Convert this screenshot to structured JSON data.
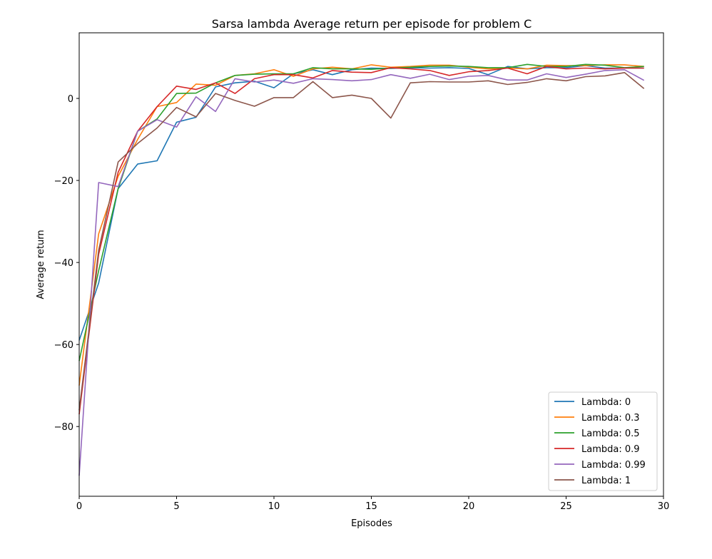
{
  "chart_data": {
    "type": "line",
    "title": "Sarsa lambda Average return per episode for problem C",
    "xlabel": "Episodes",
    "ylabel": "Average return",
    "xlim": [
      0,
      30
    ],
    "ylim": [
      -97,
      16
    ],
    "xticks": [
      0,
      5,
      10,
      15,
      20,
      25,
      30
    ],
    "yticks": [
      -80,
      -60,
      -40,
      -20,
      0
    ],
    "grid": false,
    "legend_position": "lower right",
    "x": [
      0,
      1,
      2,
      3,
      4,
      5,
      6,
      7,
      8,
      9,
      10,
      11,
      12,
      13,
      14,
      15,
      16,
      17,
      18,
      19,
      20,
      21,
      22,
      23,
      24,
      25,
      26,
      27,
      28,
      29
    ],
    "series": [
      {
        "name": "Lambda: 0",
        "color": "#1f77b4",
        "values": [
          -59,
          -45,
          -22,
          -16,
          -15.2,
          -5.8,
          -4.6,
          2.8,
          3.8,
          4.2,
          2.6,
          6,
          7,
          5.8,
          7,
          7.4,
          7.3,
          7.5,
          7.4,
          7.5,
          7.3,
          5.8,
          7.8,
          7.2,
          7.5,
          7.5,
          8,
          7.4,
          7.4,
          7.4
        ]
      },
      {
        "name": "Lambda: 0.3",
        "color": "#ff7f0e",
        "values": [
          -70,
          -33,
          -19,
          -10,
          -2,
          -1,
          3.5,
          3.2,
          5.6,
          6,
          7,
          5.4,
          7.2,
          7.6,
          7.2,
          8.2,
          7.6,
          7.8,
          8.1,
          8.1,
          7.6,
          7.2,
          7.4,
          7.2,
          8.1,
          8,
          8,
          8.2,
          8.2,
          7.8
        ]
      },
      {
        "name": "Lambda: 0.5",
        "color": "#2ca02c",
        "values": [
          -64,
          -42,
          -22,
          -8,
          -5,
          1.2,
          1.3,
          3.8,
          5.6,
          5.9,
          6,
          6,
          7.5,
          7.2,
          7.2,
          7.1,
          7.4,
          7.6,
          7.8,
          7.9,
          7.8,
          7.5,
          7.5,
          8.3,
          7.8,
          7.8,
          8.3,
          8.1,
          7.5,
          7.8
        ]
      },
      {
        "name": "Lambda: 0.9",
        "color": "#d62728",
        "values": [
          -77,
          -38,
          -18,
          -8,
          -2,
          3,
          2.2,
          3.8,
          1.2,
          4.8,
          5.8,
          5.8,
          5,
          6.8,
          6.4,
          6.3,
          7.5,
          7.2,
          6.8,
          5.6,
          6.5,
          6.8,
          7.4,
          6,
          7.8,
          7.2,
          7.4,
          7.2,
          7.4,
          7.4
        ]
      },
      {
        "name": "Lambda: 0.99",
        "color": "#9467bd",
        "values": [
          -92,
          -20.5,
          -21.5,
          -8,
          -5.2,
          -7,
          0.4,
          -3.2,
          4.8,
          4,
          4.5,
          3.7,
          4.8,
          4.6,
          4.3,
          4.6,
          5.8,
          4.9,
          5.9,
          4.6,
          5.4,
          5.6,
          4.5,
          4.5,
          6,
          5.1,
          5.9,
          6.8,
          7,
          4.4
        ]
      },
      {
        "name": "Lambda: 1",
        "color": "#8c564b",
        "values": [
          -76,
          -37,
          -15.5,
          -11,
          -7.2,
          -2.2,
          -4.5,
          1.2,
          -0.5,
          -1.9,
          0.2,
          0.2,
          4.1,
          0.2,
          0.8,
          0,
          -4.8,
          3.8,
          4.1,
          4,
          4,
          4.3,
          3.4,
          3.9,
          4.8,
          4.3,
          5.3,
          5.5,
          6.3,
          2.4
        ]
      }
    ]
  }
}
